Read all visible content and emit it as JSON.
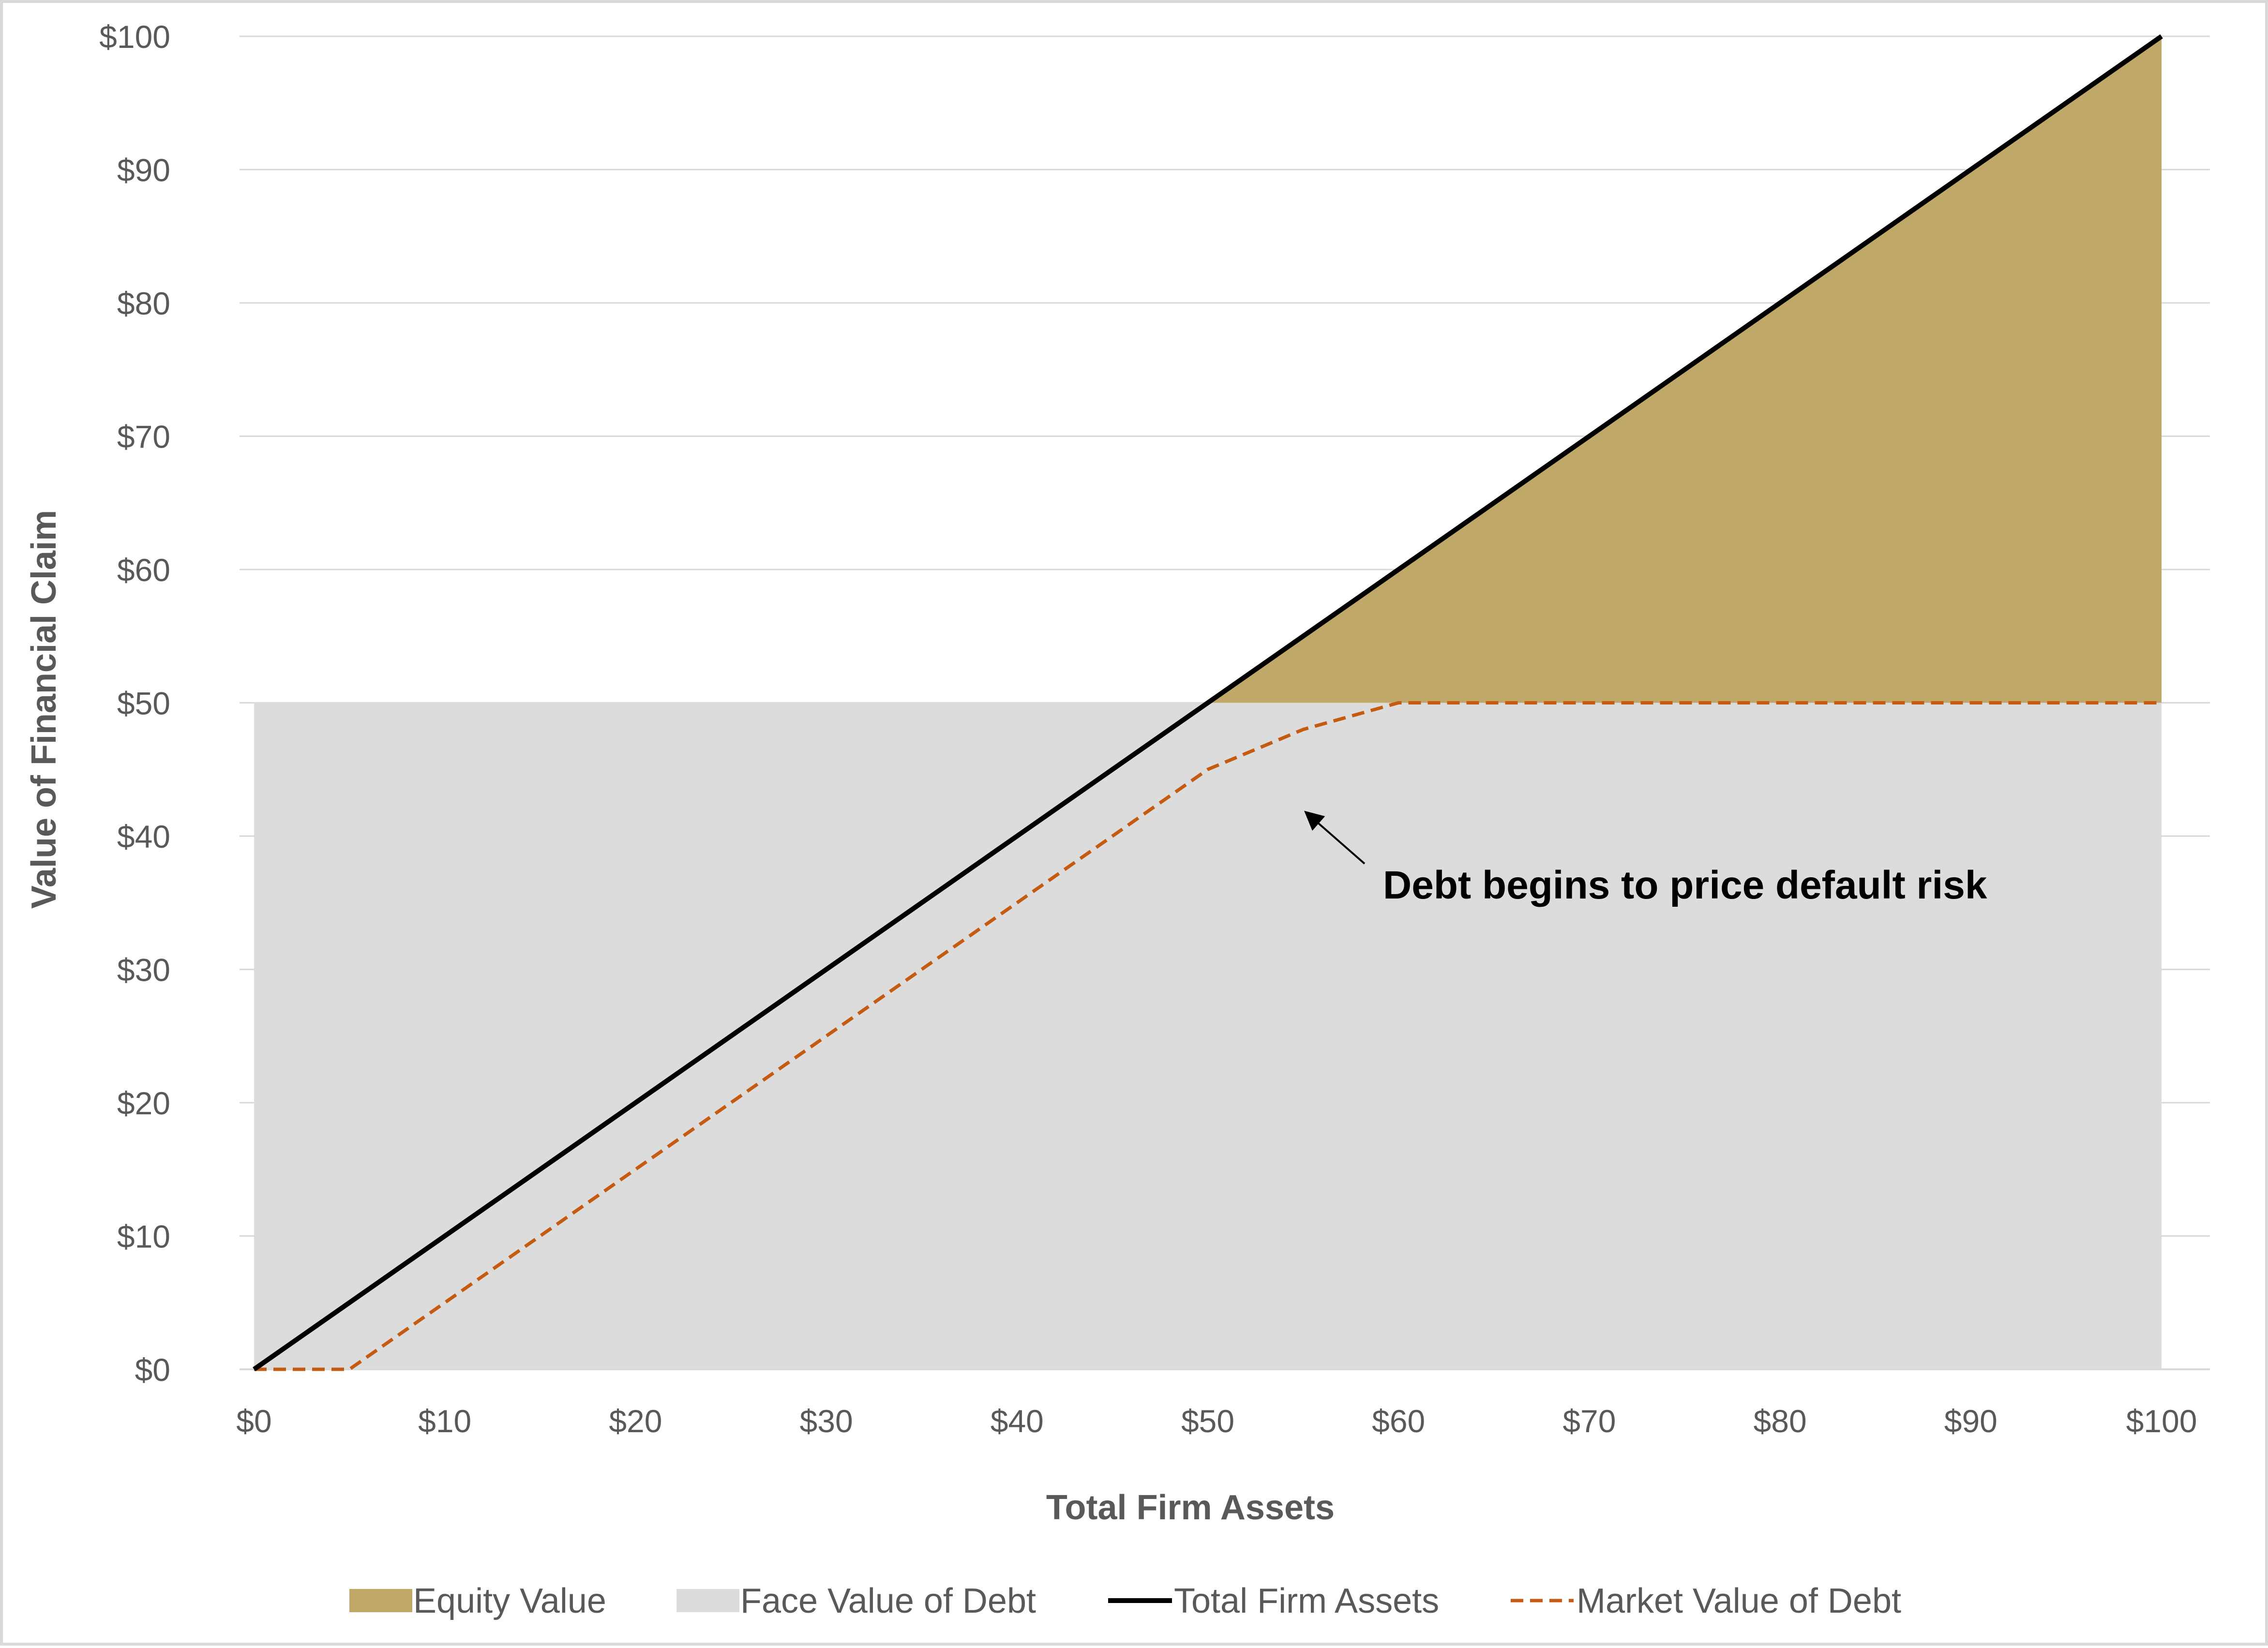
{
  "chart_data": {
    "type": "area",
    "xlabel": "Total Firm Assets",
    "ylabel": "Value of Financial Claim",
    "xlim": [
      0,
      100
    ],
    "ylim": [
      0,
      100
    ],
    "x_ticks": [
      "$0",
      "$10",
      "$20",
      "$30",
      "$40",
      "$50",
      "$60",
      "$70",
      "$80",
      "$90",
      "$100"
    ],
    "y_ticks": [
      "$0",
      "$10",
      "$20",
      "$30",
      "$40",
      "$50",
      "$60",
      "$70",
      "$80",
      "$90",
      "$100"
    ],
    "grid": "horizontal",
    "legend_position": "bottom",
    "colors": {
      "equity": "#c0a868",
      "face_debt": "#dcdcdc",
      "total_assets": "#000000",
      "market_debt": "#c55a11"
    },
    "series": [
      {
        "name": "Equity Value",
        "type": "area",
        "x": [
          50,
          100
        ],
        "lower": [
          50,
          50
        ],
        "upper": [
          50,
          100
        ]
      },
      {
        "name": "Face Value of Debt",
        "type": "area",
        "x": [
          0,
          100
        ],
        "values": [
          50,
          50
        ]
      },
      {
        "name": "Total Firm Assets",
        "type": "line",
        "x": [
          0,
          100
        ],
        "values": [
          0,
          100
        ]
      },
      {
        "name": "Market Value of Debt",
        "type": "line",
        "style": "dashed",
        "x": [
          0,
          5,
          50,
          55,
          60,
          100
        ],
        "values": [
          0,
          0,
          45,
          48,
          50,
          50
        ]
      }
    ],
    "annotations": [
      {
        "text": "Debt begins to price default risk",
        "arrow_to": [
          55,
          42
        ]
      }
    ]
  }
}
